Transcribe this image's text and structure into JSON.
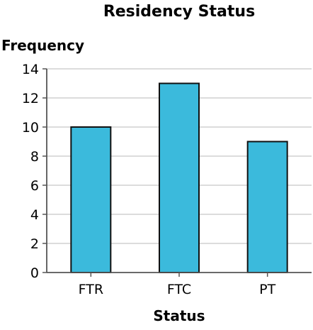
{
  "chart_data": {
    "type": "bar",
    "title": "Residency Status",
    "xlabel": "Status",
    "ylabel": "Frequency",
    "categories": [
      "FTR",
      "FTC",
      "PT"
    ],
    "values": [
      10,
      13,
      9
    ],
    "ylim": [
      0,
      14
    ],
    "yticks": [
      "0",
      "2",
      "4",
      "6",
      "8",
      "10",
      "12",
      "14"
    ],
    "grid": true,
    "colors": {
      "bar": "#3bbadc",
      "bar_stroke": "#111111",
      "grid": "#c8c8c8",
      "axis": "#555555"
    }
  }
}
